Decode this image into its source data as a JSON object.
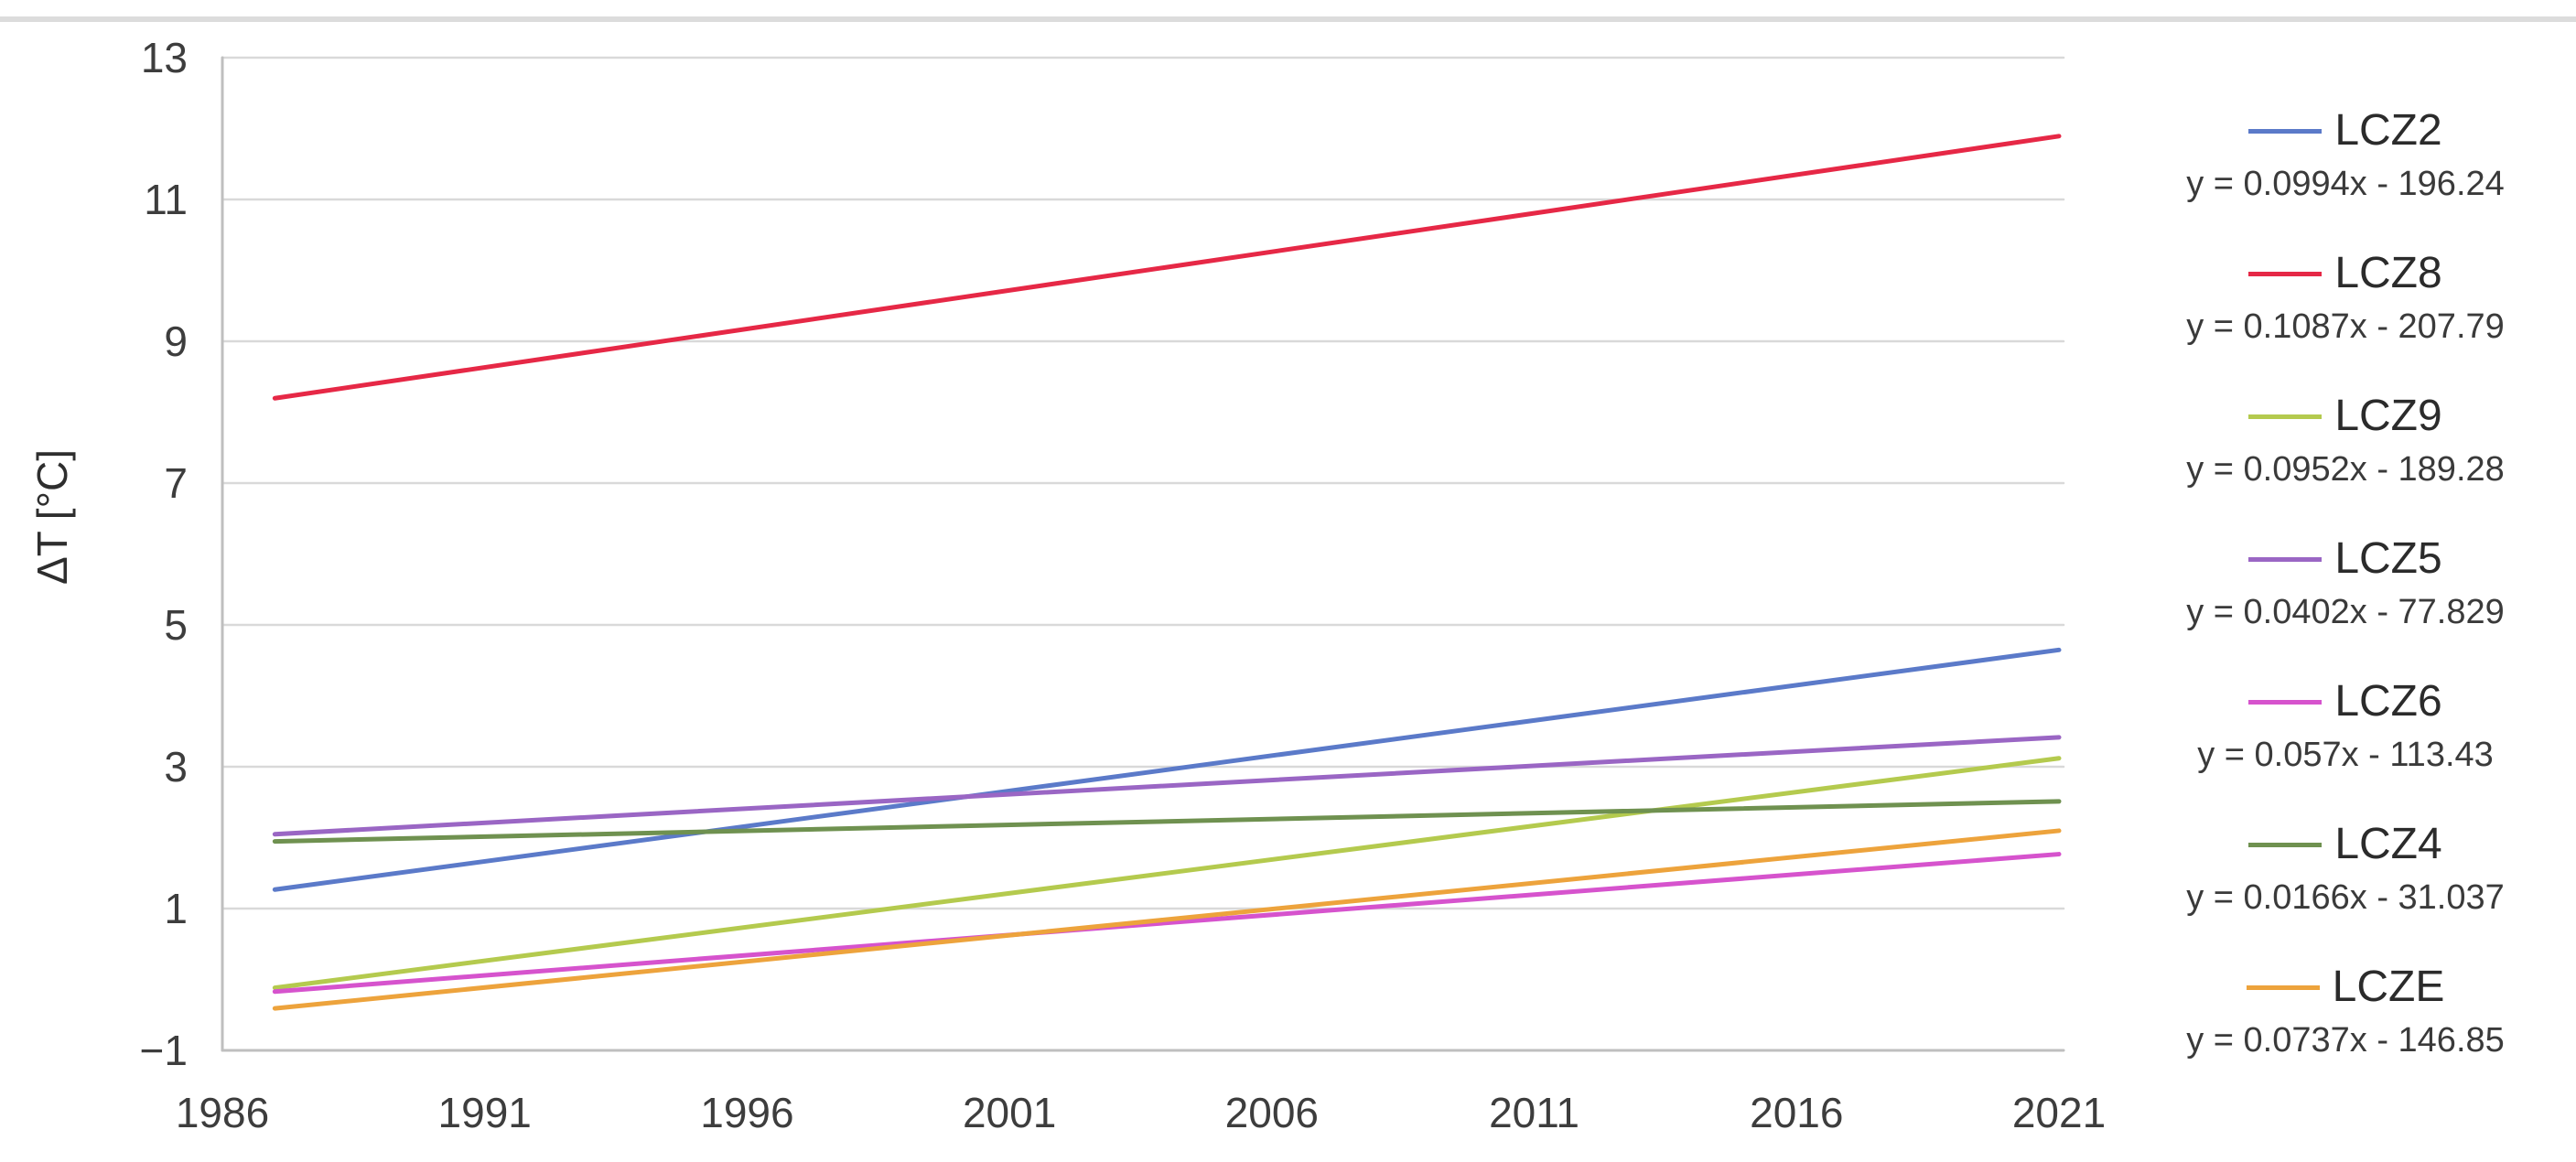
{
  "page": {
    "background_color": "#ffffff",
    "top_rule_color": "#dcdcdc"
  },
  "chart_data": {
    "type": "line",
    "title": "",
    "xlabel": "",
    "ylabel": "ΔT [°C]",
    "xlim": [
      1986,
      2021.1
    ],
    "ylim": [
      -1,
      13
    ],
    "grid": "horizontal",
    "grid_color": "#d9d9d9",
    "axis_line_color": "#bfbfbf",
    "legend_position": "right-outside",
    "x_ticks": [
      {
        "label": "1986",
        "value": 1986
      },
      {
        "label": "1991",
        "value": 1991
      },
      {
        "label": "1996",
        "value": 1996
      },
      {
        "label": "2001",
        "value": 2001
      },
      {
        "label": "2006",
        "value": 2006
      },
      {
        "label": "2011",
        "value": 2011
      },
      {
        "label": "2016",
        "value": 2016
      },
      {
        "label": "2021",
        "value": 2021
      }
    ],
    "y_ticks": [
      {
        "label": "13",
        "value": 13
      },
      {
        "label": "11",
        "value": 11
      },
      {
        "label": "9",
        "value": 9
      },
      {
        "label": "7",
        "value": 7
      },
      {
        "label": "5",
        "value": 5
      },
      {
        "label": "3",
        "value": 3
      },
      {
        "label": "1",
        "value": 1
      },
      {
        "label": "−1",
        "value": -1
      }
    ],
    "line_x_start": 1987,
    "line_x_end": 2021,
    "series": [
      {
        "name": "LCZ2",
        "equation": "y = 0.0994x - 196.24",
        "slope": 0.0994,
        "intercept": -196.24,
        "color": "#5b7ac9",
        "y_at_1987": 1.27,
        "y_at_2021": 4.65
      },
      {
        "name": "LCZ8",
        "equation": "y = 0.1087x - 207.79",
        "slope": 0.1087,
        "intercept": -207.79,
        "color": "#e62846",
        "y_at_1987": 8.2,
        "y_at_2021": 11.89
      },
      {
        "name": "LCZ9",
        "equation": "y = 0.0952x - 189.28",
        "slope": 0.0952,
        "intercept": -189.28,
        "color": "#b4ca4e",
        "y_at_1987": -0.12,
        "y_at_2021": 3.12
      },
      {
        "name": "LCZ5",
        "equation": "y = 0.0402x - 77.829",
        "slope": 0.0402,
        "intercept": -77.829,
        "color": "#9a66c4",
        "y_at_1987": 2.05,
        "y_at_2021": 3.42
      },
      {
        "name": "LCZ6",
        "equation": "y = 0.057x - 113.43",
        "slope": 0.057,
        "intercept": -113.43,
        "color": "#d653cd",
        "y_at_1987": -0.17,
        "y_at_2021": 1.77
      },
      {
        "name": "LCZ4",
        "equation": "y = 0.0166x - 31.037",
        "slope": 0.0166,
        "intercept": -31.037,
        "color": "#6f9150",
        "y_at_1987": 1.95,
        "y_at_2021": 2.51
      },
      {
        "name": "LCZE",
        "equation": "y = 0.0737x - 146.85",
        "slope": 0.0737,
        "intercept": -146.85,
        "color": "#eda33c",
        "y_at_1987": -0.41,
        "y_at_2021": 2.1
      }
    ]
  }
}
